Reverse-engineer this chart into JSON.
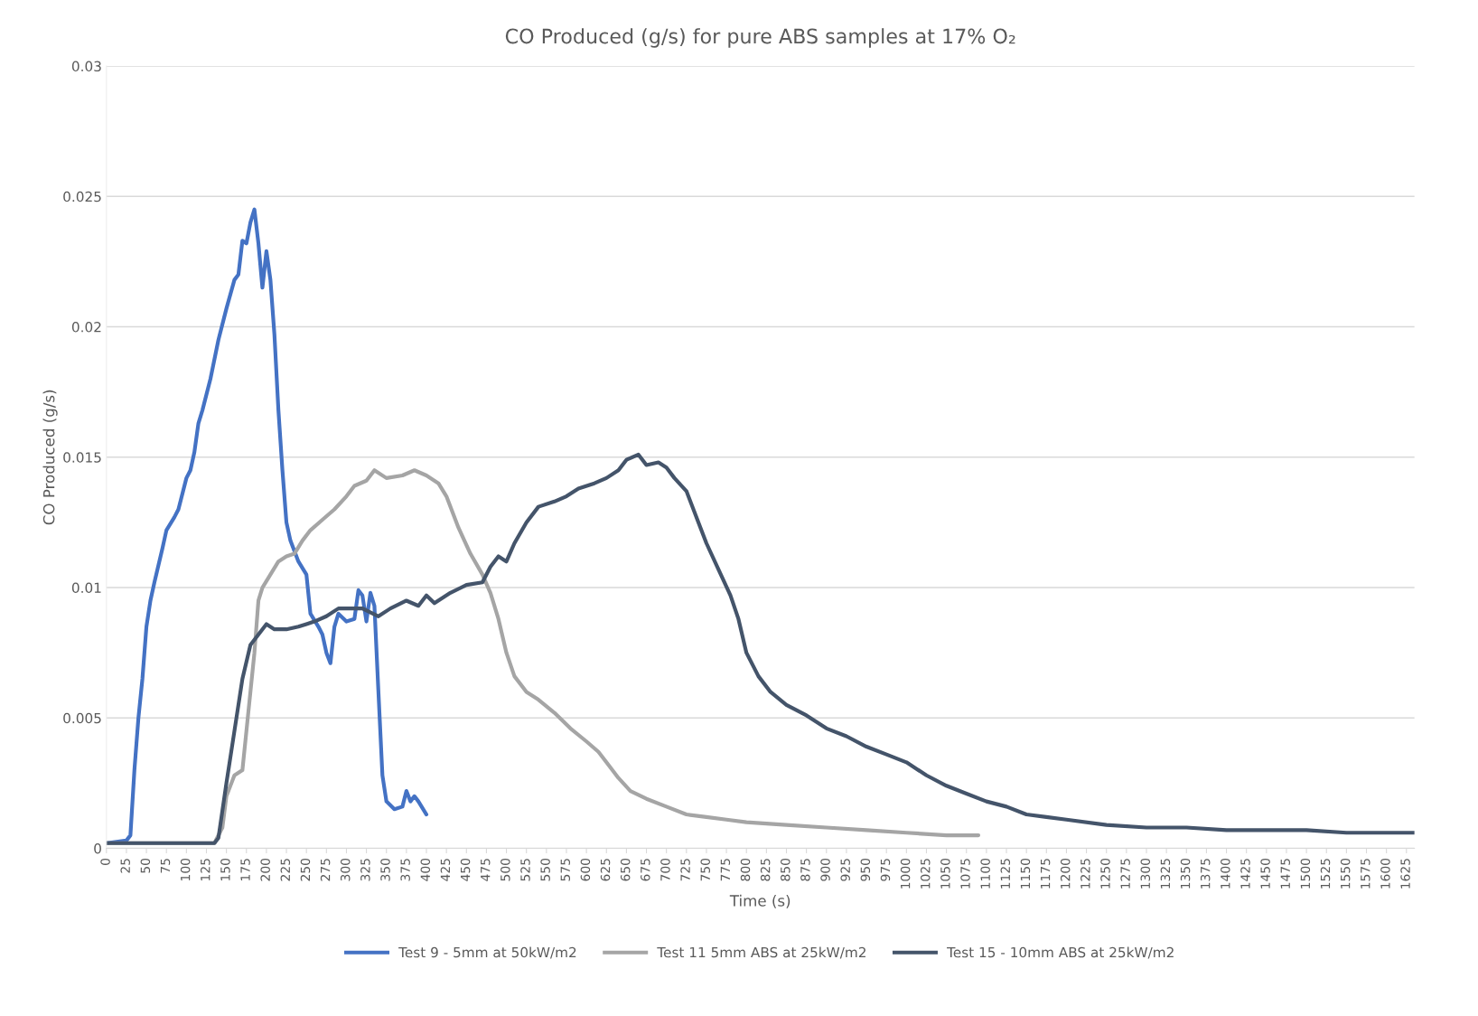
{
  "chart_data": {
    "type": "line",
    "title": "CO Produced (g/s) for pure ABS samples at 17% O₂",
    "xlabel": "Time (s)",
    "ylabel": "CO Produced (g/s)",
    "xlim": [
      0,
      1635
    ],
    "ylim": [
      0,
      0.03
    ],
    "xticks": [
      0,
      25,
      50,
      75,
      100,
      125,
      150,
      175,
      200,
      225,
      250,
      275,
      300,
      325,
      350,
      375,
      400,
      425,
      450,
      475,
      500,
      525,
      550,
      575,
      600,
      625,
      650,
      675,
      700,
      725,
      750,
      775,
      800,
      825,
      850,
      875,
      900,
      925,
      950,
      975,
      1000,
      1025,
      1050,
      1075,
      1100,
      1125,
      1150,
      1175,
      1200,
      1225,
      1250,
      1275,
      1300,
      1325,
      1350,
      1375,
      1400,
      1425,
      1450,
      1475,
      1500,
      1525,
      1550,
      1575,
      1600,
      1625
    ],
    "yticks": [
      0,
      0.005,
      0.01,
      0.015,
      0.02,
      0.025,
      0.03
    ],
    "grid": "y",
    "legend": "bottom",
    "line_style": "solid",
    "marker": "none",
    "series": [
      {
        "name": "Test 9 - 5mm at 50kW/m2",
        "color": "#4472c4",
        "x": [
          0,
          25,
          30,
          35,
          40,
          45,
          50,
          55,
          60,
          70,
          75,
          85,
          90,
          100,
          105,
          110,
          115,
          120,
          130,
          140,
          150,
          160,
          165,
          170,
          175,
          180,
          185,
          190,
          195,
          200,
          205,
          210,
          215,
          220,
          225,
          230,
          240,
          250,
          255,
          265,
          270,
          275,
          280,
          285,
          290,
          300,
          310,
          315,
          320,
          325,
          330,
          335,
          340,
          345,
          350,
          360,
          370,
          375,
          380,
          385,
          390,
          400
        ],
        "values": [
          0.0002,
          0.0003,
          0.0005,
          0.003,
          0.005,
          0.0065,
          0.0085,
          0.0095,
          0.0102,
          0.0115,
          0.0122,
          0.0127,
          0.013,
          0.0142,
          0.0145,
          0.0152,
          0.0163,
          0.0168,
          0.018,
          0.0195,
          0.0207,
          0.0218,
          0.022,
          0.0233,
          0.0232,
          0.024,
          0.0245,
          0.0232,
          0.0215,
          0.0229,
          0.0218,
          0.0197,
          0.0168,
          0.0145,
          0.0125,
          0.0118,
          0.011,
          0.0105,
          0.009,
          0.0085,
          0.0082,
          0.0075,
          0.0071,
          0.0085,
          0.009,
          0.0087,
          0.0088,
          0.0099,
          0.0097,
          0.0087,
          0.0098,
          0.0093,
          0.006,
          0.0028,
          0.0018,
          0.0015,
          0.0016,
          0.0022,
          0.0018,
          0.002,
          0.0018,
          0.0013
        ]
      },
      {
        "name": "Test 11 5mm ABS at 25kW/m2",
        "color": "#a5a5a5",
        "x": [
          0,
          135,
          145,
          150,
          160,
          170,
          175,
          185,
          190,
          195,
          205,
          215,
          225,
          235,
          245,
          255,
          270,
          285,
          300,
          310,
          325,
          335,
          350,
          370,
          385,
          400,
          415,
          425,
          440,
          455,
          470,
          480,
          490,
          500,
          510,
          525,
          540,
          560,
          580,
          600,
          615,
          625,
          640,
          655,
          675,
          700,
          725,
          750,
          775,
          800,
          850,
          900,
          950,
          1000,
          1050,
          1090
        ],
        "values": [
          0.0002,
          0.0002,
          0.0008,
          0.002,
          0.0028,
          0.003,
          0.0045,
          0.0075,
          0.0095,
          0.01,
          0.0105,
          0.011,
          0.0112,
          0.0113,
          0.0118,
          0.0122,
          0.0126,
          0.013,
          0.0135,
          0.0139,
          0.0141,
          0.0145,
          0.0142,
          0.0143,
          0.0145,
          0.0143,
          0.014,
          0.0135,
          0.0123,
          0.0113,
          0.0105,
          0.0098,
          0.0088,
          0.0075,
          0.0066,
          0.006,
          0.0057,
          0.0052,
          0.0046,
          0.0041,
          0.0037,
          0.0033,
          0.0027,
          0.0022,
          0.0019,
          0.0016,
          0.0013,
          0.0012,
          0.0011,
          0.001,
          0.0009,
          0.0008,
          0.0007,
          0.0006,
          0.0005,
          0.0005
        ]
      },
      {
        "name": "Test 15 - 10mm ABS at 25kW/m2",
        "color": "#44546a",
        "x": [
          0,
          135,
          140,
          150,
          160,
          170,
          180,
          190,
          200,
          210,
          225,
          240,
          250,
          260,
          275,
          290,
          300,
          320,
          340,
          355,
          375,
          390,
          400,
          410,
          430,
          450,
          470,
          480,
          490,
          500,
          510,
          525,
          540,
          560,
          575,
          590,
          610,
          625,
          640,
          650,
          665,
          675,
          690,
          700,
          710,
          725,
          740,
          750,
          765,
          780,
          790,
          800,
          815,
          830,
          850,
          875,
          900,
          925,
          950,
          975,
          1000,
          1025,
          1050,
          1075,
          1100,
          1125,
          1150,
          1175,
          1200,
          1250,
          1300,
          1350,
          1400,
          1450,
          1500,
          1550,
          1600,
          1635
        ],
        "values": [
          0.0002,
          0.0002,
          0.0004,
          0.0025,
          0.0045,
          0.0065,
          0.0078,
          0.0082,
          0.0086,
          0.0084,
          0.0084,
          0.0085,
          0.0086,
          0.0087,
          0.0089,
          0.0092,
          0.0092,
          0.0092,
          0.0089,
          0.0092,
          0.0095,
          0.0093,
          0.0097,
          0.0094,
          0.0098,
          0.0101,
          0.0102,
          0.0108,
          0.0112,
          0.011,
          0.0117,
          0.0125,
          0.0131,
          0.0133,
          0.0135,
          0.0138,
          0.014,
          0.0142,
          0.0145,
          0.0149,
          0.0151,
          0.0147,
          0.0148,
          0.0146,
          0.0142,
          0.0137,
          0.0125,
          0.0117,
          0.0107,
          0.0097,
          0.0088,
          0.0075,
          0.0066,
          0.006,
          0.0055,
          0.0051,
          0.0046,
          0.0043,
          0.0039,
          0.0036,
          0.0033,
          0.0028,
          0.0024,
          0.0021,
          0.0018,
          0.0016,
          0.0013,
          0.0012,
          0.0011,
          0.0009,
          0.0008,
          0.0008,
          0.0007,
          0.0007,
          0.0007,
          0.0006,
          0.0006,
          0.0006
        ]
      }
    ]
  }
}
